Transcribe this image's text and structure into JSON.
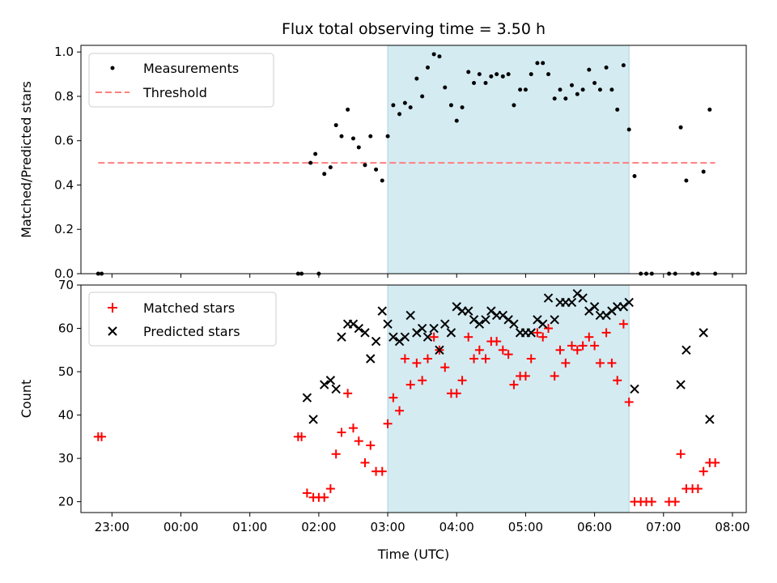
{
  "chart_data": {
    "type": "scatter",
    "title": "Flux total observing time = 3.50 h",
    "xlabel": "Time (UTC)",
    "x_tick_labels": [
      "23:00",
      "00:00",
      "01:00",
      "02:00",
      "03:00",
      "04:00",
      "05:00",
      "06:00",
      "07:00",
      "08:00"
    ],
    "x_ticks": [
      -1,
      0,
      1,
      2,
      3,
      4,
      5,
      6,
      7,
      8
    ],
    "x_range": [
      -1.45,
      8.2
    ],
    "x_units": "hours UTC (negative = previous day)",
    "shaded_interval": [
      3.0,
      6.5
    ],
    "shaded_color": "#d4ebf2",
    "panels": [
      {
        "ylabel": "Matched/Predicted stars",
        "ylim": [
          0,
          1.03
        ],
        "y_ticks": [
          0.0,
          0.2,
          0.4,
          0.6,
          0.8,
          1.0
        ],
        "y_tick_labels": [
          "0.0",
          "0.2",
          "0.4",
          "0.6",
          "0.8",
          "1.0"
        ],
        "legend_position": "upper-left",
        "threshold": {
          "value": 0.5,
          "x_range": [
            -1.2,
            7.75
          ]
        },
        "series": [
          {
            "name": "Measurements",
            "marker": "dot",
            "color": "#000000",
            "x": [
              -1.2,
              -1.15,
              1.7,
              1.75,
              1.88,
              1.95,
              2.0,
              2.08,
              2.17,
              2.25,
              2.33,
              2.42,
              2.5,
              2.58,
              2.67,
              2.75,
              2.83,
              2.92,
              3.0,
              3.08,
              3.17,
              3.25,
              3.33,
              3.42,
              3.5,
              3.58,
              3.67,
              3.75,
              3.83,
              3.92,
              4.0,
              4.08,
              4.17,
              4.25,
              4.33,
              4.42,
              4.5,
              4.58,
              4.67,
              4.75,
              4.83,
              4.92,
              5.0,
              5.08,
              5.17,
              5.25,
              5.33,
              5.42,
              5.5,
              5.58,
              5.67,
              5.75,
              5.83,
              5.92,
              6.0,
              6.08,
              6.17,
              6.25,
              6.33,
              6.42,
              6.5,
              6.58,
              6.67,
              6.75,
              6.83,
              7.08,
              7.17,
              7.25,
              7.33,
              7.42,
              7.5,
              7.58,
              7.67,
              7.75
            ],
            "y": [
              0.0,
              0.0,
              0.0,
              0.0,
              0.5,
              0.54,
              0.0,
              0.45,
              0.48,
              0.67,
              0.62,
              0.74,
              0.61,
              0.57,
              0.49,
              0.62,
              0.47,
              0.42,
              0.62,
              0.76,
              0.72,
              0.77,
              0.75,
              0.88,
              0.8,
              0.93,
              0.99,
              0.98,
              0.84,
              0.76,
              0.69,
              0.75,
              0.91,
              0.86,
              0.9,
              0.86,
              0.89,
              0.9,
              0.89,
              0.9,
              0.76,
              0.83,
              0.83,
              0.9,
              0.95,
              0.95,
              0.9,
              0.79,
              0.83,
              0.79,
              0.85,
              0.81,
              0.83,
              0.92,
              0.86,
              0.83,
              0.93,
              0.83,
              0.74,
              0.94,
              0.65,
              0.44,
              0.0,
              0.0,
              0.0,
              0.0,
              0.0,
              0.66,
              0.42,
              0.0,
              0.0,
              0.46,
              0.74,
              0.0
            ]
          },
          {
            "name": "Threshold",
            "marker": "dashed-line",
            "color": "#ff7f7f"
          }
        ]
      },
      {
        "ylabel": "Count",
        "ylim": [
          17.5,
          70
        ],
        "y_ticks": [
          20,
          30,
          40,
          50,
          60,
          70
        ],
        "y_tick_labels": [
          "20",
          "30",
          "40",
          "50",
          "60",
          "70"
        ],
        "legend_position": "upper-left",
        "series": [
          {
            "name": "Matched stars",
            "marker": "plus",
            "color": "#ff0000",
            "x": [
              -1.2,
              -1.15,
              1.7,
              1.75,
              1.83,
              1.92,
              2.0,
              2.08,
              2.17,
              2.25,
              2.33,
              2.42,
              2.5,
              2.58,
              2.67,
              2.75,
              2.83,
              2.92,
              3.0,
              3.08,
              3.17,
              3.25,
              3.33,
              3.42,
              3.5,
              3.58,
              3.67,
              3.75,
              3.83,
              3.92,
              4.0,
              4.08,
              4.17,
              4.25,
              4.33,
              4.42,
              4.5,
              4.58,
              4.67,
              4.75,
              4.83,
              4.92,
              5.0,
              5.08,
              5.17,
              5.25,
              5.33,
              5.42,
              5.5,
              5.58,
              5.67,
              5.75,
              5.83,
              5.92,
              6.0,
              6.08,
              6.17,
              6.25,
              6.33,
              6.42,
              6.5,
              6.58,
              6.67,
              6.75,
              6.83,
              7.08,
              7.17,
              7.25,
              7.33,
              7.42,
              7.5,
              7.58,
              7.67,
              7.75
            ],
            "y": [
              35,
              35,
              35,
              35,
              22,
              21,
              21,
              21,
              23,
              31,
              36,
              45,
              37,
              34,
              29,
              33,
              27,
              27,
              38,
              44,
              41,
              53,
              47,
              52,
              48,
              53,
              58,
              55,
              51,
              45,
              45,
              48,
              58,
              53,
              55,
              53,
              57,
              57,
              55,
              54,
              47,
              49,
              49,
              53,
              59,
              58,
              60,
              49,
              55,
              52,
              56,
              55,
              56,
              58,
              56,
              52,
              59,
              52,
              48,
              61,
              43,
              20,
              20,
              20,
              20,
              20,
              20,
              31,
              23,
              23,
              23,
              27,
              29,
              29
            ]
          },
          {
            "name": "Predicted stars",
            "marker": "x",
            "color": "#000000",
            "x": [
              1.83,
              1.92,
              2.08,
              2.17,
              2.25,
              2.33,
              2.42,
              2.5,
              2.58,
              2.67,
              2.75,
              2.83,
              2.92,
              3.0,
              3.08,
              3.17,
              3.25,
              3.33,
              3.42,
              3.5,
              3.58,
              3.67,
              3.75,
              3.83,
              3.92,
              4.0,
              4.08,
              4.17,
              4.25,
              4.33,
              4.42,
              4.5,
              4.58,
              4.67,
              4.75,
              4.83,
              4.92,
              5.0,
              5.08,
              5.17,
              5.25,
              5.33,
              5.42,
              5.5,
              5.58,
              5.67,
              5.75,
              5.83,
              5.92,
              6.0,
              6.08,
              6.17,
              6.25,
              6.33,
              6.42,
              6.5,
              6.58,
              7.25,
              7.33,
              7.58,
              7.67
            ],
            "y": [
              44,
              39,
              47,
              48,
              46,
              58,
              61,
              61,
              60,
              59,
              53,
              57,
              64,
              61,
              58,
              57,
              58,
              63,
              59,
              60,
              58,
              60,
              55,
              61,
              59,
              65,
              64,
              64,
              62,
              61,
              62,
              64,
              63,
              63,
              62,
              61,
              59,
              59,
              59,
              62,
              61,
              67,
              62,
              66,
              66,
              66,
              68,
              67,
              64,
              65,
              63,
              63,
              64,
              65,
              65,
              66,
              46,
              47,
              55,
              59,
              39
            ]
          }
        ]
      }
    ]
  }
}
